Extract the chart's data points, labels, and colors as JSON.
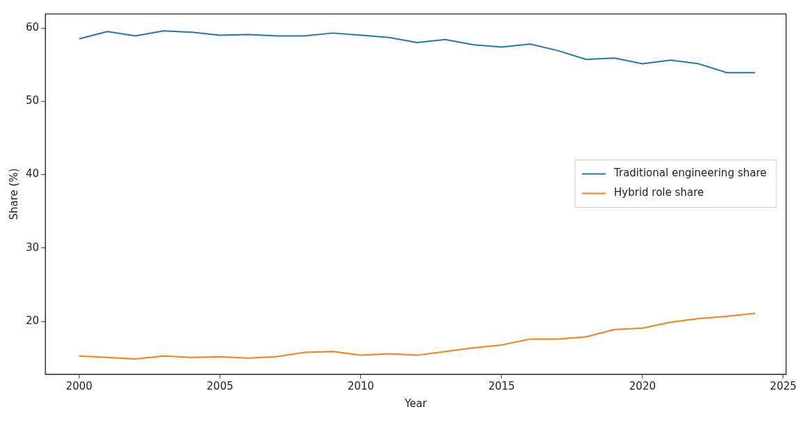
{
  "chart_data": {
    "type": "line",
    "xlabel": "Year",
    "ylabel": "Share (%)",
    "x": [
      2000,
      2001,
      2002,
      2003,
      2004,
      2005,
      2006,
      2007,
      2008,
      2009,
      2010,
      2011,
      2012,
      2013,
      2014,
      2015,
      2016,
      2017,
      2018,
      2019,
      2020,
      2021,
      2022,
      2023,
      2024
    ],
    "series": [
      {
        "name": "Traditional engineering share",
        "color": "#1f77b4",
        "values": [
          58.5,
          59.5,
          58.9,
          59.6,
          59.4,
          59.0,
          59.1,
          58.9,
          58.9,
          59.3,
          59.0,
          58.7,
          58.0,
          58.4,
          57.7,
          57.4,
          57.8,
          56.9,
          55.7,
          55.9,
          55.1,
          55.6,
          55.1,
          53.9,
          53.9
        ]
      },
      {
        "name": "Hybrid role share",
        "color": "#ff7f0e",
        "values": [
          15.3,
          15.1,
          14.9,
          15.3,
          15.1,
          15.2,
          15.0,
          15.2,
          15.8,
          15.9,
          15.4,
          15.6,
          15.4,
          15.9,
          16.4,
          16.8,
          17.6,
          17.6,
          17.9,
          18.9,
          19.1,
          19.9,
          20.4,
          20.7,
          21.1
        ]
      }
    ],
    "xlim": [
      1998.8,
      2025.1
    ],
    "xticks": [
      2000,
      2005,
      2010,
      2015,
      2020,
      2025
    ],
    "ylim": [
      12.8,
      61.9
    ],
    "yticks": [
      20,
      30,
      40,
      50,
      60
    ],
    "grid": false,
    "legend": "right",
    "marker": "none",
    "line_style": "solid"
  }
}
